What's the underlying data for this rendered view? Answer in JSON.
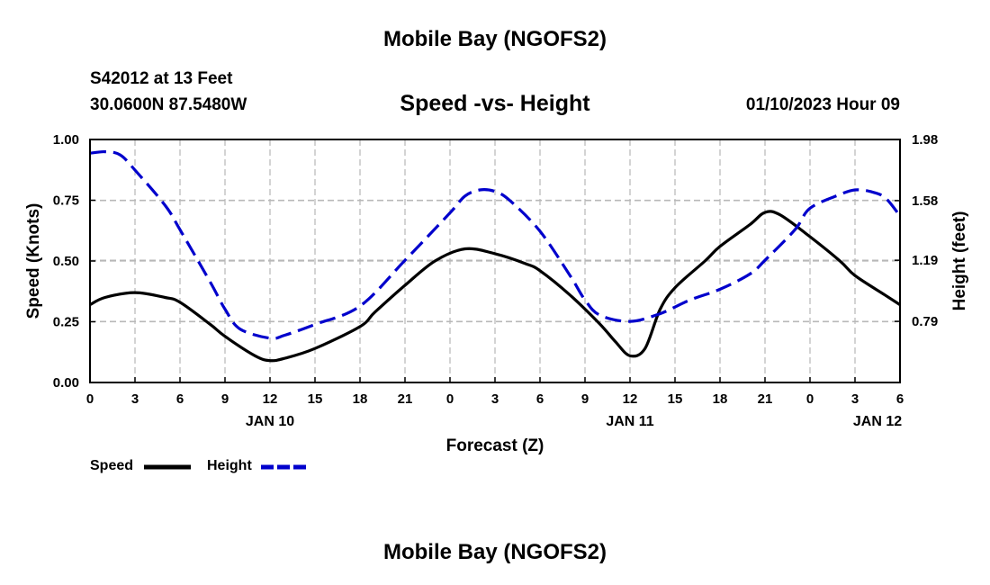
{
  "header": {
    "title": "Mobile Bay (NGOFS2)",
    "station": "S42012 at 13 Feet",
    "coords": "30.0600N  87.5480W",
    "subtitle": "Speed -vs- Height",
    "datetime": "01/10/2023 Hour 09"
  },
  "footer": {
    "title": "Mobile Bay (NGOFS2)"
  },
  "legend": [
    {
      "label": "Speed",
      "color": "#000000",
      "style": "solid"
    },
    {
      "label": "Height",
      "color": "#0000cc",
      "style": "dashed"
    }
  ],
  "chart_data": {
    "type": "line",
    "xlabel": "Forecast (Z)",
    "ylabel_left": "Speed (Knots)",
    "ylabel_right": "Height (feet)",
    "x_unit": "hours since 01/10/2023 00Z",
    "xlim": [
      0,
      54
    ],
    "x_ticks": [
      {
        "h": 0,
        "label": "0"
      },
      {
        "h": 3,
        "label": "3"
      },
      {
        "h": 6,
        "label": "6"
      },
      {
        "h": 9,
        "label": "9"
      },
      {
        "h": 12,
        "label": "12"
      },
      {
        "h": 15,
        "label": "15"
      },
      {
        "h": 18,
        "label": "18"
      },
      {
        "h": 21,
        "label": "21"
      },
      {
        "h": 24,
        "label": "0"
      },
      {
        "h": 27,
        "label": "3"
      },
      {
        "h": 30,
        "label": "6"
      },
      {
        "h": 33,
        "label": "9"
      },
      {
        "h": 36,
        "label": "12"
      },
      {
        "h": 39,
        "label": "15"
      },
      {
        "h": 42,
        "label": "18"
      },
      {
        "h": 45,
        "label": "21"
      },
      {
        "h": 48,
        "label": "0"
      },
      {
        "h": 51,
        "label": "3"
      },
      {
        "h": 54,
        "label": "6"
      }
    ],
    "day_labels": [
      {
        "h": 12,
        "label": "JAN 10"
      },
      {
        "h": 36,
        "label": "JAN 11"
      },
      {
        "h": 52.5,
        "label": "JAN 12"
      }
    ],
    "ylim_left": [
      0,
      1.0
    ],
    "y_ticks_left": [
      "0.00",
      "0.25",
      "0.50",
      "0.75",
      "1.00"
    ],
    "ylim_right": [
      0.39,
      1.98
    ],
    "y_ticks_right": [
      {
        "v": 0.79,
        "label": "0.79"
      },
      {
        "v": 1.19,
        "label": "1.19"
      },
      {
        "v": 1.58,
        "label": "1.58"
      },
      {
        "v": 1.98,
        "label": "1.98"
      }
    ],
    "grid": true,
    "series": [
      {
        "name": "Speed",
        "axis": "left",
        "color": "#000000",
        "dashed": false,
        "points": [
          [
            0,
            0.32
          ],
          [
            1,
            0.35
          ],
          [
            3,
            0.37
          ],
          [
            5,
            0.35
          ],
          [
            6,
            0.33
          ],
          [
            8,
            0.24
          ],
          [
            9,
            0.19
          ],
          [
            11,
            0.11
          ],
          [
            12,
            0.09
          ],
          [
            13,
            0.1
          ],
          [
            15,
            0.14
          ],
          [
            18,
            0.23
          ],
          [
            19,
            0.29
          ],
          [
            21,
            0.4
          ],
          [
            23,
            0.5
          ],
          [
            25,
            0.55
          ],
          [
            27,
            0.53
          ],
          [
            29,
            0.49
          ],
          [
            30,
            0.46
          ],
          [
            32,
            0.36
          ],
          [
            34,
            0.24
          ],
          [
            35,
            0.17
          ],
          [
            36,
            0.11
          ],
          [
            37,
            0.14
          ],
          [
            38,
            0.3
          ],
          [
            39,
            0.39
          ],
          [
            41,
            0.5
          ],
          [
            42,
            0.56
          ],
          [
            44,
            0.65
          ],
          [
            45,
            0.7
          ],
          [
            46,
            0.69
          ],
          [
            48,
            0.6
          ],
          [
            50,
            0.5
          ],
          [
            51,
            0.44
          ],
          [
            53,
            0.36
          ],
          [
            54,
            0.32
          ]
        ]
      },
      {
        "name": "Height",
        "axis": "right",
        "color": "#0000cc",
        "dashed": true,
        "points": [
          [
            0,
            1.89
          ],
          [
            1,
            1.9
          ],
          [
            2,
            1.88
          ],
          [
            3,
            1.78
          ],
          [
            5,
            1.55
          ],
          [
            6,
            1.39
          ],
          [
            8,
            1.05
          ],
          [
            9,
            0.87
          ],
          [
            10,
            0.74
          ],
          [
            12,
            0.68
          ],
          [
            13,
            0.7
          ],
          [
            15,
            0.77
          ],
          [
            18,
            0.89
          ],
          [
            21,
            1.19
          ],
          [
            24,
            1.5
          ],
          [
            25,
            1.61
          ],
          [
            26,
            1.65
          ],
          [
            27,
            1.64
          ],
          [
            28,
            1.58
          ],
          [
            30,
            1.38
          ],
          [
            32,
            1.09
          ],
          [
            33,
            0.93
          ],
          [
            34,
            0.83
          ],
          [
            36,
            0.79
          ],
          [
            38,
            0.84
          ],
          [
            40,
            0.93
          ],
          [
            42,
            1.0
          ],
          [
            44,
            1.1
          ],
          [
            45,
            1.19
          ],
          [
            47,
            1.39
          ],
          [
            48,
            1.53
          ],
          [
            50,
            1.62
          ],
          [
            51,
            1.65
          ],
          [
            52,
            1.64
          ],
          [
            53,
            1.6
          ],
          [
            54,
            1.48
          ]
        ]
      }
    ]
  }
}
